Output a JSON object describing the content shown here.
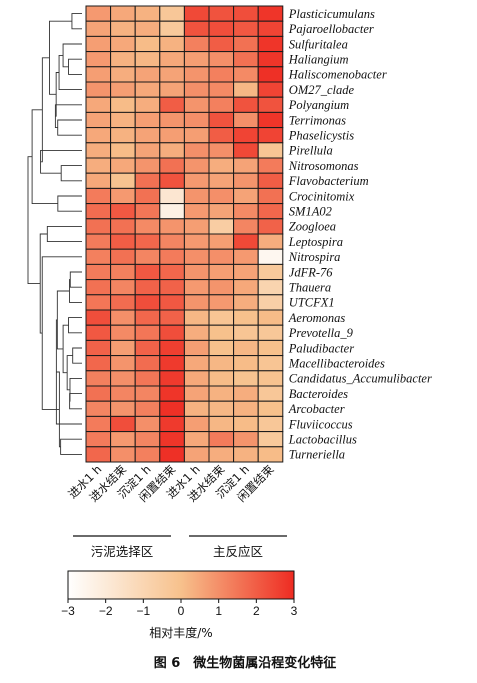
{
  "chart_data": {
    "type": "heatmap",
    "rows": [
      "Plasticicumulans",
      "Pajaroellobacter",
      "Sulfuritalea",
      "Haliangium",
      "Haliscomenobacter",
      "OM27_clade",
      "Polyangium",
      "Terrimonas",
      "Phaselicystis",
      "Pirellula",
      "Nitrosomonas",
      "Flavobacterium",
      "Crocinitomix",
      "SM1A02",
      "Zoogloea",
      "Leptospira",
      "Nitrospira",
      "JdFR-76",
      "Thauera",
      "UTCFX1",
      "Aeromonas",
      "Prevotella_9",
      "Paludibacter",
      "Macellibacteroides",
      "Candidatus_Accumulibacter",
      "Bacteroides",
      "Arcobacter",
      "Fluviicoccus",
      "Lactobacillus",
      "Turneriella"
    ],
    "columns": [
      "进水1 h",
      "进水结束",
      "沉淀1 h",
      "闲置结束",
      "进水1 h",
      "进水结束",
      "沉淀1 h",
      "闲置结束"
    ],
    "groups": [
      {
        "label": "污泥选择区",
        "start": 0,
        "end": 3
      },
      {
        "label": "主反应区",
        "start": 4,
        "end": 7
      }
    ],
    "values": [
      [
        0.8,
        0.5,
        0.3,
        -0.3,
        2.4,
        2.2,
        2.3,
        2.8
      ],
      [
        0.6,
        0.3,
        0.4,
        -0.4,
        2.2,
        2.3,
        2.1,
        2.5
      ],
      [
        0.7,
        0.5,
        0.1,
        0.3,
        1.3,
        2.0,
        1.6,
        2.8
      ],
      [
        0.8,
        0.3,
        0.2,
        0.5,
        0.7,
        1.0,
        1.6,
        2.8
      ],
      [
        0.7,
        0.4,
        0.6,
        0.6,
        0.9,
        1.3,
        1.1,
        2.9
      ],
      [
        0.9,
        0.7,
        0.5,
        0.6,
        1.0,
        1.1,
        0.2,
        2.5
      ],
      [
        0.5,
        0.1,
        0.4,
        2.0,
        0.9,
        1.3,
        2.2,
        2.2
      ],
      [
        0.6,
        0.3,
        0.7,
        0.9,
        1.0,
        2.2,
        1.0,
        2.8
      ],
      [
        0.5,
        0.3,
        0.6,
        0.7,
        0.7,
        2.0,
        2.5,
        2.5
      ],
      [
        0.4,
        0.1,
        0.6,
        0.4,
        1.0,
        1.0,
        2.4,
        -0.2
      ],
      [
        0.4,
        0.5,
        0.9,
        1.6,
        0.9,
        0.4,
        0.6,
        1.4
      ],
      [
        0.5,
        -0.1,
        1.6,
        2.2,
        0.8,
        0.6,
        0.9,
        2.0
      ],
      [
        1.4,
        0.8,
        1.6,
        -1.8,
        0.9,
        1.0,
        0.6,
        1.6
      ],
      [
        1.7,
        2.1,
        1.5,
        -2.3,
        0.8,
        0.6,
        1.1,
        1.8
      ],
      [
        1.6,
        1.6,
        1.1,
        0.9,
        0.7,
        -0.6,
        1.2,
        1.9
      ],
      [
        1.4,
        2.0,
        1.8,
        1.2,
        0.8,
        0.7,
        2.4,
        0.4
      ],
      [
        1.3,
        1.6,
        1.2,
        1.4,
        1.0,
        1.0,
        0.8,
        -2.6
      ],
      [
        1.4,
        1.3,
        2.1,
        1.8,
        0.9,
        0.7,
        0.6,
        -0.4
      ],
      [
        1.6,
        1.2,
        1.9,
        1.9,
        0.8,
        0.9,
        0.5,
        -0.9
      ],
      [
        1.5,
        1.7,
        2.3,
        2.1,
        0.9,
        0.8,
        0.4,
        -0.7
      ],
      [
        2.3,
        1.0,
        1.8,
        1.9,
        0.2,
        -0.2,
        0.0,
        0.1
      ],
      [
        2.1,
        1.1,
        1.5,
        2.3,
        0.4,
        0.0,
        -0.2,
        -0.3
      ],
      [
        1.9,
        0.7,
        1.9,
        2.6,
        0.7,
        0.0,
        0.2,
        0.0
      ],
      [
        1.8,
        0.9,
        1.7,
        2.7,
        0.5,
        0.2,
        0.1,
        -0.2
      ],
      [
        1.3,
        1.0,
        1.5,
        2.7,
        0.5,
        0.1,
        -0.1,
        -0.1
      ],
      [
        1.6,
        1.2,
        1.2,
        2.8,
        0.6,
        0.3,
        0.4,
        -0.3
      ],
      [
        1.2,
        0.9,
        1.3,
        2.9,
        0.3,
        0.2,
        0.3,
        0.0
      ],
      [
        1.4,
        2.3,
        1.0,
        2.7,
        0.7,
        0.2,
        0.1,
        -0.3
      ],
      [
        1.4,
        0.8,
        1.2,
        2.8,
        0.5,
        1.4,
        0.9,
        -0.4
      ],
      [
        1.8,
        1.0,
        1.3,
        2.9,
        0.6,
        0.4,
        0.3,
        0.1
      ]
    ],
    "colorbar": {
      "min": -3,
      "max": 3,
      "ticks": [
        -3,
        -2,
        -1,
        0,
        1,
        2,
        3
      ],
      "colors": [
        "#ffffff",
        "#f7c18c",
        "#ee2b22"
      ],
      "label": "相对丰度/%"
    },
    "dendrogram": "row",
    "caption": "图 6　微生物菌属沿程变化特征"
  }
}
